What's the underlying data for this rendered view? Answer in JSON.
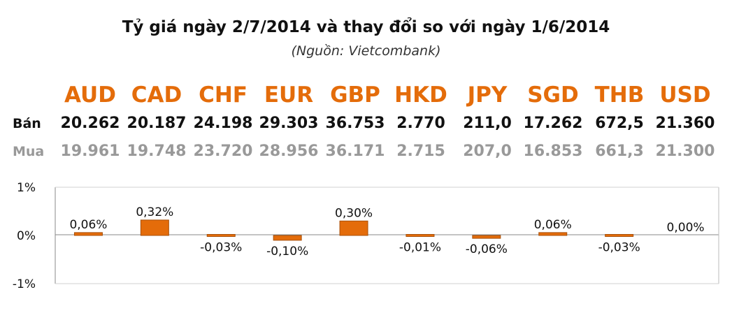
{
  "title": "Tỷ giá ngày 2/7/2014 và thay đổi so với ngày 1/6/2014",
  "subtitle": "(Nguồn: Vietcombank)",
  "row_labels": {
    "sell": "Bán",
    "buy": "Mua"
  },
  "currencies": [
    {
      "code": "AUD",
      "sell": "20.262",
      "buy": "19.961"
    },
    {
      "code": "CAD",
      "sell": "20.187",
      "buy": "19.748"
    },
    {
      "code": "CHF",
      "sell": "24.198",
      "buy": "23.720"
    },
    {
      "code": "EUR",
      "sell": "29.303",
      "buy": "28.956"
    },
    {
      "code": "GBP",
      "sell": "36.753",
      "buy": "36.171"
    },
    {
      "code": "HKD",
      "sell": "2.770",
      "buy": "2.715"
    },
    {
      "code": "JPY",
      "sell": "211,0",
      "buy": "207,0"
    },
    {
      "code": "SGD",
      "sell": "17.262",
      "buy": "16.853"
    },
    {
      "code": "THB",
      "sell": "672,5",
      "buy": "661,3"
    },
    {
      "code": "USD",
      "sell": "21.360",
      "buy": "21.300"
    }
  ],
  "colors": {
    "accent": "#e46c0a",
    "bar": "#e46c0a",
    "bar_dark": "#a8500a",
    "buy_text": "#999999"
  },
  "chart_data": {
    "type": "bar",
    "categories": [
      "AUD",
      "CAD",
      "CHF",
      "EUR",
      "GBP",
      "HKD",
      "JPY",
      "SGD",
      "THB",
      "USD"
    ],
    "values": [
      0.06,
      0.32,
      -0.03,
      -0.1,
      0.3,
      -0.01,
      -0.06,
      0.06,
      -0.03,
      0.0
    ],
    "data_labels": [
      "0,06%",
      "0,32%",
      "-0,03%",
      "-0,10%",
      "0,30%",
      "-0,01%",
      "-0,06%",
      "0,06%",
      "-0,03%",
      "0,00%"
    ],
    "ylim": [
      -1,
      1
    ],
    "yticks": [
      {
        "value": 1,
        "label": "1%"
      },
      {
        "value": 0,
        "label": "0%"
      },
      {
        "value": -1,
        "label": "-1%"
      }
    ],
    "grid": false
  }
}
